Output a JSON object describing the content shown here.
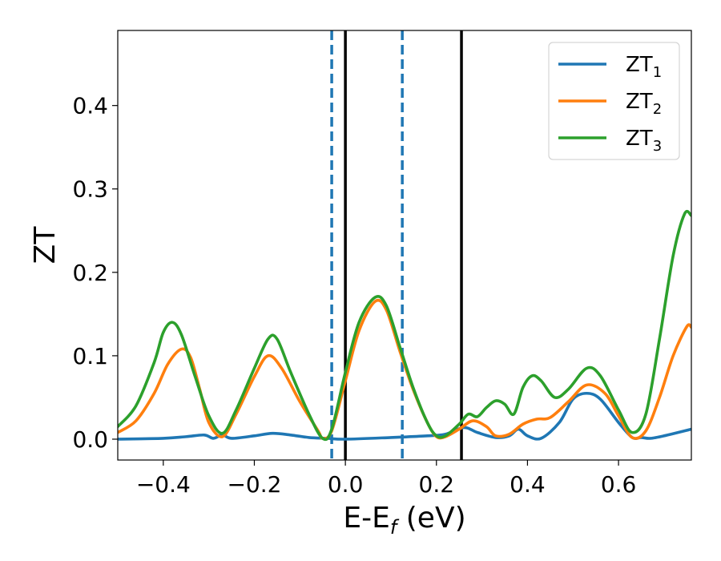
{
  "chart_data": {
    "type": "line",
    "xlabel": "E-E",
    "xlabel_sub": "f",
    "xlabel_unit": " (eV)",
    "ylabel": "ZT",
    "xlim": [
      -0.5,
      0.76
    ],
    "ylim": [
      -0.025,
      0.49
    ],
    "xticks": [
      -0.4,
      -0.2,
      0.0,
      0.2,
      0.4,
      0.6
    ],
    "xtick_labels": [
      "−0.4",
      "−0.2",
      "0.0",
      "0.2",
      "0.4",
      "0.6"
    ],
    "yticks": [
      0.0,
      0.1,
      0.2,
      0.3,
      0.4
    ],
    "ytick_labels": [
      "0.0",
      "0.1",
      "0.2",
      "0.3",
      "0.4"
    ],
    "legend_position": "top-right",
    "grid": false,
    "vlines": [
      {
        "x": -0.03,
        "style": "dashed",
        "color": "#1f77b4"
      },
      {
        "x": 0.0,
        "style": "solid",
        "color": "#000000"
      },
      {
        "x": 0.125,
        "style": "dashed",
        "color": "#1f77b4"
      },
      {
        "x": 0.255,
        "style": "solid",
        "color": "#000000"
      }
    ],
    "series": [
      {
        "name": "ZT",
        "name_sub": "1",
        "color": "#1f77b4",
        "points": [
          [
            -0.5,
            0.0
          ],
          [
            -0.4,
            0.001
          ],
          [
            -0.35,
            0.003
          ],
          [
            -0.31,
            0.005
          ],
          [
            -0.29,
            0.001
          ],
          [
            -0.27,
            0.005
          ],
          [
            -0.25,
            0.001
          ],
          [
            -0.2,
            0.004
          ],
          [
            -0.16,
            0.007
          ],
          [
            -0.12,
            0.005
          ],
          [
            -0.08,
            0.002
          ],
          [
            -0.04,
            0.001
          ],
          [
            0.0,
            0.0
          ],
          [
            0.1,
            0.002
          ],
          [
            0.18,
            0.004
          ],
          [
            0.22,
            0.006
          ],
          [
            0.26,
            0.014
          ],
          [
            0.29,
            0.008
          ],
          [
            0.33,
            0.002
          ],
          [
            0.36,
            0.004
          ],
          [
            0.38,
            0.012
          ],
          [
            0.4,
            0.004
          ],
          [
            0.43,
            0.001
          ],
          [
            0.47,
            0.02
          ],
          [
            0.5,
            0.048
          ],
          [
            0.53,
            0.055
          ],
          [
            0.56,
            0.048
          ],
          [
            0.6,
            0.02
          ],
          [
            0.63,
            0.002
          ],
          [
            0.65,
            0.002
          ],
          [
            0.67,
            0.001
          ],
          [
            0.7,
            0.004
          ],
          [
            0.76,
            0.012
          ]
        ]
      },
      {
        "name": "ZT",
        "name_sub": "2",
        "color": "#ff7f0e",
        "points": [
          [
            -0.5,
            0.008
          ],
          [
            -0.46,
            0.022
          ],
          [
            -0.42,
            0.055
          ],
          [
            -0.39,
            0.09
          ],
          [
            -0.36,
            0.108
          ],
          [
            -0.34,
            0.098
          ],
          [
            -0.32,
            0.06
          ],
          [
            -0.3,
            0.02
          ],
          [
            -0.27,
            0.003
          ],
          [
            -0.24,
            0.03
          ],
          [
            -0.2,
            0.075
          ],
          [
            -0.17,
            0.1
          ],
          [
            -0.14,
            0.085
          ],
          [
            -0.1,
            0.045
          ],
          [
            -0.06,
            0.01
          ],
          [
            -0.05,
            0.001
          ],
          [
            -0.03,
            0.01
          ],
          [
            0.0,
            0.07
          ],
          [
            0.03,
            0.13
          ],
          [
            0.065,
            0.165
          ],
          [
            0.09,
            0.155
          ],
          [
            0.12,
            0.105
          ],
          [
            0.15,
            0.058
          ],
          [
            0.18,
            0.02
          ],
          [
            0.2,
            0.003
          ],
          [
            0.22,
            0.003
          ],
          [
            0.25,
            0.012
          ],
          [
            0.28,
            0.022
          ],
          [
            0.31,
            0.015
          ],
          [
            0.33,
            0.004
          ],
          [
            0.36,
            0.006
          ],
          [
            0.39,
            0.018
          ],
          [
            0.42,
            0.024
          ],
          [
            0.45,
            0.026
          ],
          [
            0.49,
            0.045
          ],
          [
            0.53,
            0.065
          ],
          [
            0.57,
            0.055
          ],
          [
            0.6,
            0.028
          ],
          [
            0.63,
            0.002
          ],
          [
            0.66,
            0.01
          ],
          [
            0.69,
            0.05
          ],
          [
            0.72,
            0.1
          ],
          [
            0.75,
            0.135
          ],
          [
            0.76,
            0.134
          ]
        ]
      },
      {
        "name": "ZT",
        "name_sub": "3",
        "color": "#2ca02c",
        "points": [
          [
            -0.5,
            0.015
          ],
          [
            -0.46,
            0.04
          ],
          [
            -0.42,
            0.092
          ],
          [
            -0.4,
            0.128
          ],
          [
            -0.38,
            0.14
          ],
          [
            -0.36,
            0.125
          ],
          [
            -0.33,
            0.075
          ],
          [
            -0.3,
            0.028
          ],
          [
            -0.27,
            0.007
          ],
          [
            -0.24,
            0.035
          ],
          [
            -0.2,
            0.085
          ],
          [
            -0.17,
            0.12
          ],
          [
            -0.15,
            0.12
          ],
          [
            -0.12,
            0.08
          ],
          [
            -0.08,
            0.03
          ],
          [
            -0.05,
            0.001
          ],
          [
            -0.03,
            0.012
          ],
          [
            0.0,
            0.08
          ],
          [
            0.03,
            0.14
          ],
          [
            0.065,
            0.17
          ],
          [
            0.09,
            0.16
          ],
          [
            0.12,
            0.11
          ],
          [
            0.15,
            0.06
          ],
          [
            0.18,
            0.02
          ],
          [
            0.2,
            0.004
          ],
          [
            0.22,
            0.004
          ],
          [
            0.25,
            0.018
          ],
          [
            0.27,
            0.03
          ],
          [
            0.29,
            0.027
          ],
          [
            0.31,
            0.038
          ],
          [
            0.33,
            0.046
          ],
          [
            0.35,
            0.042
          ],
          [
            0.37,
            0.03
          ],
          [
            0.39,
            0.062
          ],
          [
            0.41,
            0.076
          ],
          [
            0.43,
            0.07
          ],
          [
            0.46,
            0.05
          ],
          [
            0.49,
            0.06
          ],
          [
            0.53,
            0.085
          ],
          [
            0.56,
            0.076
          ],
          [
            0.6,
            0.035
          ],
          [
            0.63,
            0.008
          ],
          [
            0.66,
            0.03
          ],
          [
            0.69,
            0.12
          ],
          [
            0.72,
            0.22
          ],
          [
            0.745,
            0.27
          ],
          [
            0.76,
            0.268
          ]
        ]
      }
    ]
  }
}
